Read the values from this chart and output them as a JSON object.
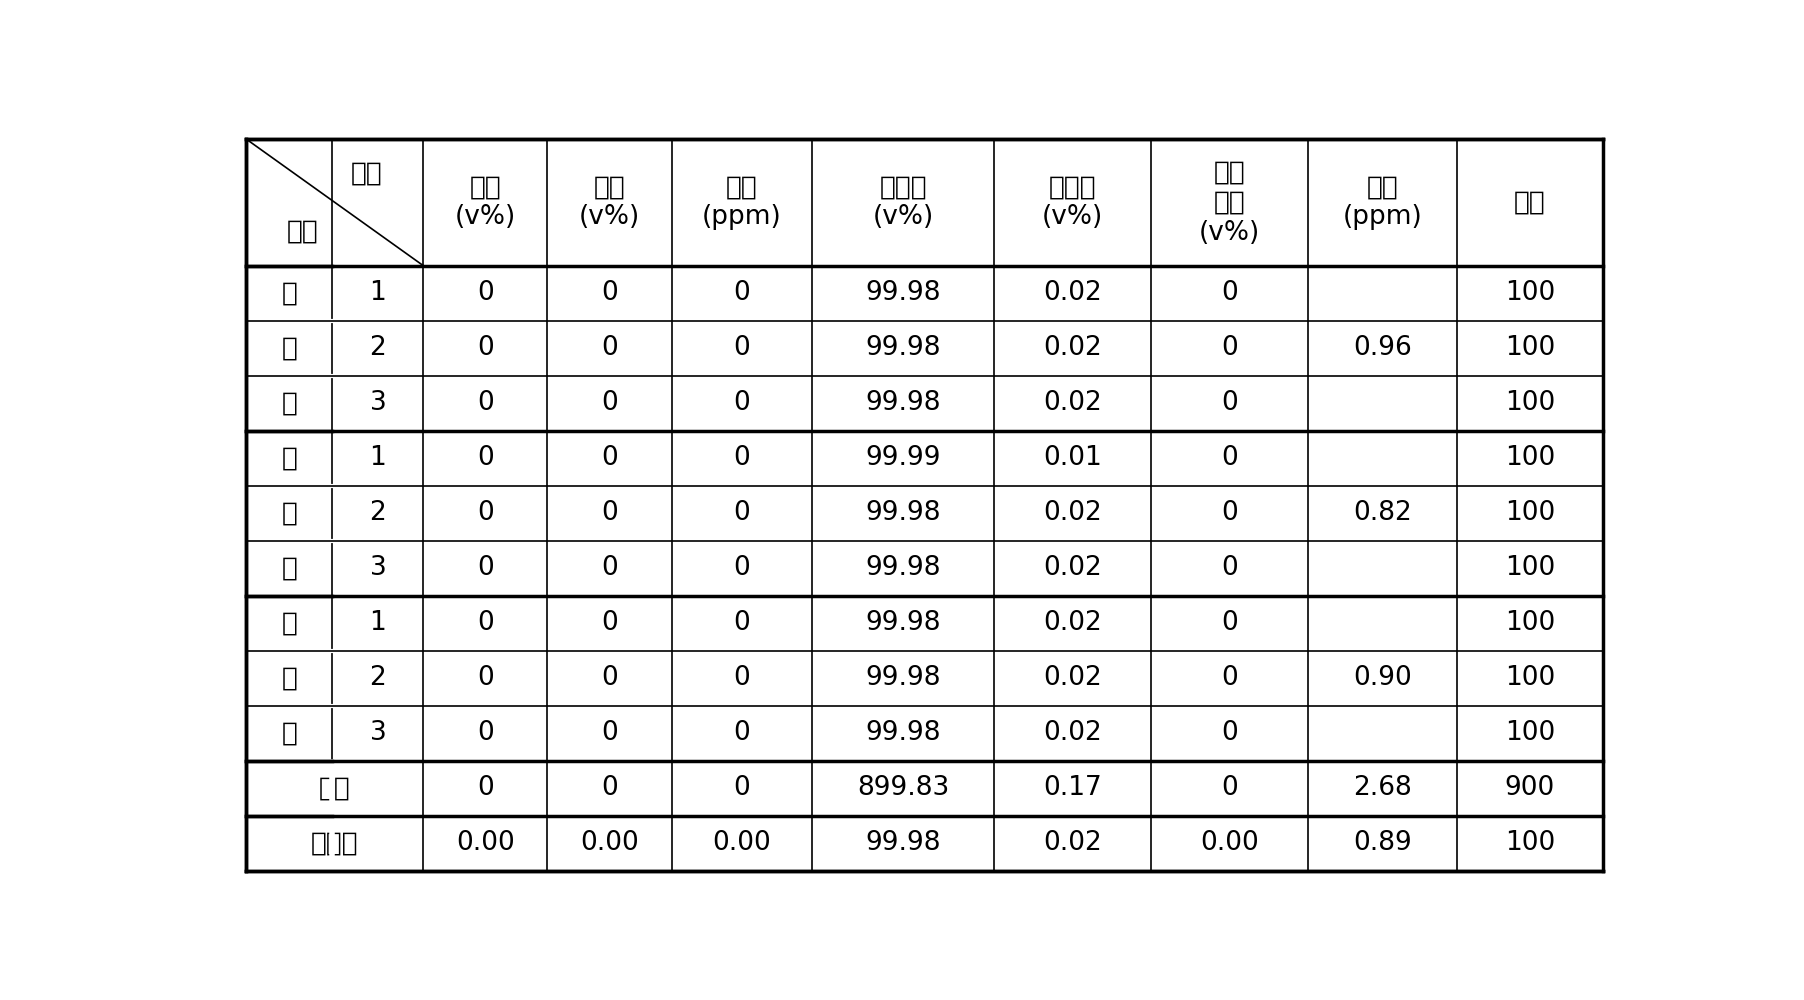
{
  "col_header_texts": [
    "乙烷\n(v%)",
    "丙烷\n(v%)",
    "丙烯\n(ppm)",
    "异丁烷\n(v%)",
    "正丁烷\n(v%)",
    "碳五\n以上\n(v%)",
    "总硫\n(ppm)",
    "合计"
  ],
  "section_chars": [
    [
      "一",
      "阶",
      "段"
    ],
    [
      "二",
      "阶",
      "段"
    ],
    [
      "三",
      "阶",
      "段"
    ]
  ],
  "seq_nums": [
    "1",
    "2",
    "3",
    "1",
    "2",
    "3",
    "1",
    "2",
    "3"
  ],
  "data_values": [
    [
      "0",
      "0",
      "0",
      "99.98",
      "0.02",
      "0",
      "",
      "100"
    ],
    [
      "0",
      "0",
      "0",
      "99.98",
      "0.02",
      "0",
      "0.96",
      "100"
    ],
    [
      "0",
      "0",
      "0",
      "99.98",
      "0.02",
      "0",
      "",
      "100"
    ],
    [
      "0",
      "0",
      "0",
      "99.99",
      "0.01",
      "0",
      "",
      "100"
    ],
    [
      "0",
      "0",
      "0",
      "99.98",
      "0.02",
      "0",
      "0.82",
      "100"
    ],
    [
      "0",
      "0",
      "0",
      "99.98",
      "0.02",
      "0",
      "",
      "100"
    ],
    [
      "0",
      "0",
      "0",
      "99.98",
      "0.02",
      "0",
      "",
      "100"
    ],
    [
      "0",
      "0",
      "0",
      "99.98",
      "0.02",
      "0",
      "0.90",
      "100"
    ],
    [
      "0",
      "0",
      "0",
      "99.98",
      "0.02",
      "0",
      "",
      "100"
    ]
  ],
  "total_row": [
    "0",
    "0",
    "0",
    "899.83",
    "0.17",
    "0",
    "2.68",
    "900"
  ],
  "avg_row": [
    "0.00",
    "0.00",
    "0.00",
    "99.98",
    "0.02",
    "0.00",
    "0.89",
    "100"
  ],
  "fen_xi": "分析",
  "xu_hao": "序号",
  "he_ji": "合计",
  "ping_jun": "平均值",
  "bg_color": "#ffffff",
  "line_color": "#000000",
  "text_color": "#000000",
  "font_size": 19,
  "header_font_size": 19,
  "lw_thick": 2.5,
  "lw_thin": 1.2
}
